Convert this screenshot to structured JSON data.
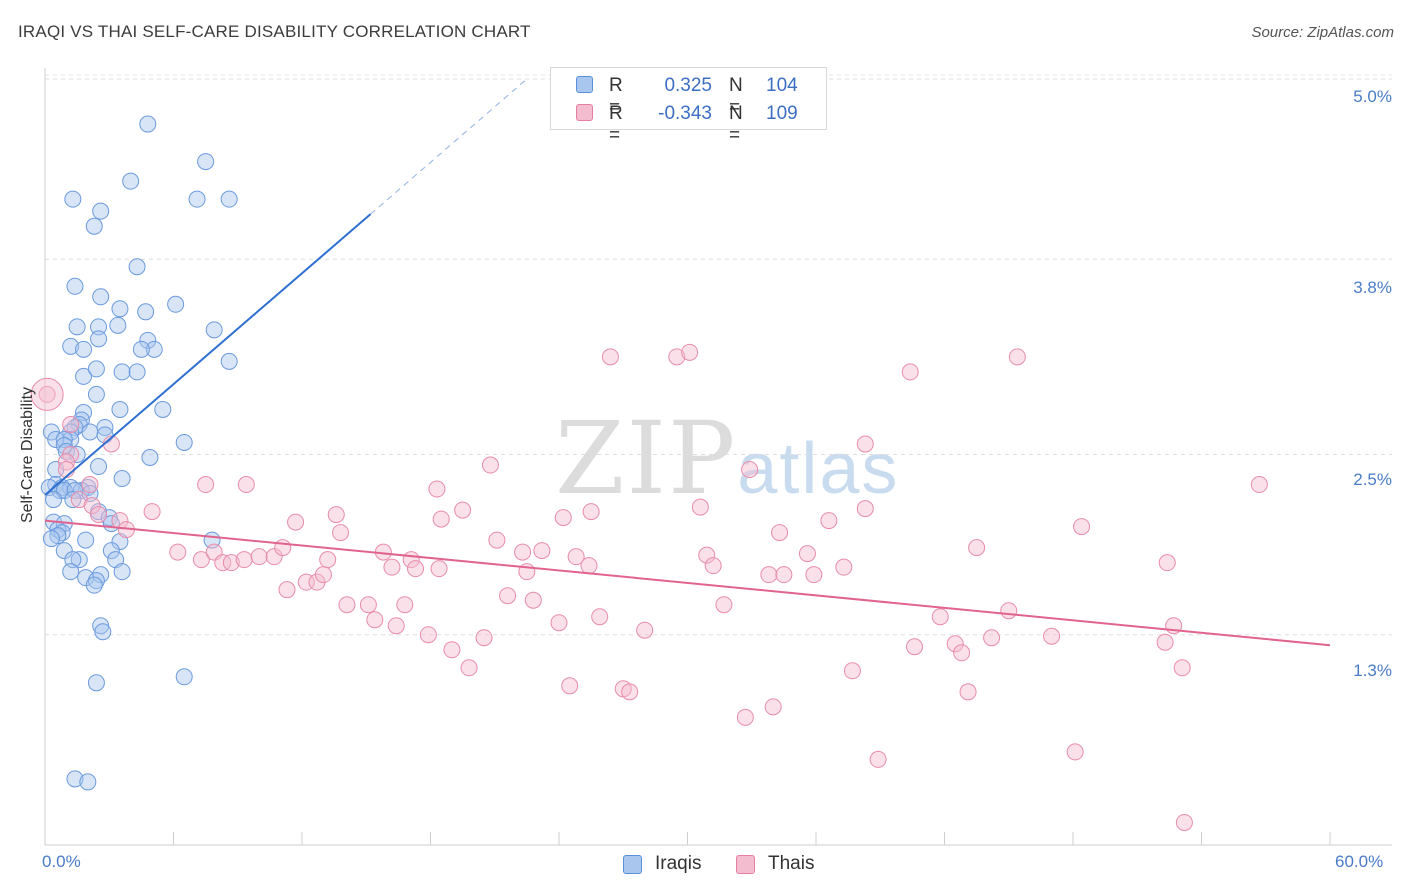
{
  "title": "IRAQI VS THAI SELF-CARE DISABILITY CORRELATION CHART",
  "source": "Source: ZipAtlas.com",
  "watermark": {
    "zip": "ZIP",
    "atlas": "atlas"
  },
  "colors": {
    "iraqis": "#5b8fd9",
    "iraqis_fill": "#a9c6ee",
    "thais": "#e57fa2",
    "thais_fill": "#f4bccf",
    "tick_text": "#4a7cc8"
  },
  "stats": {
    "iraqis": {
      "r_label": "R =",
      "r": "0.325",
      "n_label": "N =",
      "n": "104"
    },
    "thais": {
      "r_label": "R =",
      "r": "-0.343",
      "n_label": "N =",
      "n": "109"
    }
  },
  "legend": {
    "iraqis": "Iraqis",
    "thais": "Thais"
  },
  "chart_data": {
    "type": "scatter",
    "title": "IRAQI VS THAI SELF-CARE DISABILITY CORRELATION CHART",
    "xlabel": "",
    "ylabel": "Self-Care Disability",
    "xlim": [
      0,
      60
    ],
    "ylim": [
      0,
      5.0
    ],
    "x_tick_labels": [
      "0.0%",
      "60.0%"
    ],
    "y_ticks": [
      1.3,
      2.5,
      3.8,
      5.0
    ],
    "y_tick_labels": [
      "1.3%",
      "2.5%",
      "3.8%",
      "5.0%"
    ],
    "grid": true,
    "legend_position": "bottom",
    "series": [
      {
        "name": "Iraqis",
        "color": "#5b8fd9",
        "trendline": {
          "x": [
            0,
            15.2
          ],
          "y": [
            2.23,
            4.1
          ],
          "dashed_to": [
            22.5,
            5.0
          ]
        },
        "points": [
          [
            4.8,
            4.7
          ],
          [
            7.5,
            4.45
          ],
          [
            4,
            4.32
          ],
          [
            1.3,
            4.2
          ],
          [
            7.1,
            4.2
          ],
          [
            8.6,
            4.2
          ],
          [
            2.6,
            4.12
          ],
          [
            2.3,
            4.02
          ],
          [
            4.3,
            3.75
          ],
          [
            1.4,
            3.62
          ],
          [
            2.6,
            3.55
          ],
          [
            3.5,
            3.47
          ],
          [
            6.1,
            3.5
          ],
          [
            4.7,
            3.45
          ],
          [
            1.5,
            3.35
          ],
          [
            2.5,
            3.35
          ],
          [
            3.4,
            3.36
          ],
          [
            7.9,
            3.33
          ],
          [
            2.5,
            3.27
          ],
          [
            4.8,
            3.26
          ],
          [
            1.2,
            3.22
          ],
          [
            5.1,
            3.2
          ],
          [
            4.5,
            3.2
          ],
          [
            1.8,
            3.2
          ],
          [
            8.6,
            3.12
          ],
          [
            3.6,
            3.05
          ],
          [
            4.3,
            3.05
          ],
          [
            1.8,
            3.02
          ],
          [
            2.4,
            3.07
          ],
          [
            2.4,
            2.9
          ],
          [
            1.8,
            2.78
          ],
          [
            5.5,
            2.8
          ],
          [
            3.5,
            2.8
          ],
          [
            1.7,
            2.73
          ],
          [
            1.6,
            2.7
          ],
          [
            2.8,
            2.68
          ],
          [
            1.4,
            2.68
          ],
          [
            0.3,
            2.65
          ],
          [
            1.2,
            2.65
          ],
          [
            2.1,
            2.65
          ],
          [
            2.8,
            2.63
          ],
          [
            1.2,
            2.6
          ],
          [
            0.5,
            2.6
          ],
          [
            0.9,
            2.6
          ],
          [
            6.5,
            2.58
          ],
          [
            0.9,
            2.56
          ],
          [
            1.0,
            2.52
          ],
          [
            1.5,
            2.5
          ],
          [
            4.9,
            2.48
          ],
          [
            0.5,
            2.4
          ],
          [
            2.5,
            2.42
          ],
          [
            3.6,
            2.34
          ],
          [
            0.5,
            2.3
          ],
          [
            0.8,
            2.28
          ],
          [
            1.2,
            2.28
          ],
          [
            2.0,
            2.28
          ],
          [
            0.2,
            2.28
          ],
          [
            1.7,
            2.26
          ],
          [
            0.7,
            2.26
          ],
          [
            0.9,
            2.26
          ],
          [
            1.4,
            2.26
          ],
          [
            2.1,
            2.24
          ],
          [
            0.4,
            2.2
          ],
          [
            1.3,
            2.2
          ],
          [
            2.5,
            2.12
          ],
          [
            3.0,
            2.08
          ],
          [
            3.1,
            2.04
          ],
          [
            0.4,
            2.05
          ],
          [
            0.9,
            2.04
          ],
          [
            0.6,
            2.0
          ],
          [
            0.8,
            1.98
          ],
          [
            0.6,
            1.96
          ],
          [
            0.3,
            1.94
          ],
          [
            1.9,
            1.93
          ],
          [
            7.8,
            1.93
          ],
          [
            3.5,
            1.92
          ],
          [
            0.9,
            1.86
          ],
          [
            3.1,
            1.86
          ],
          [
            1.6,
            1.8
          ],
          [
            3.3,
            1.8
          ],
          [
            1.3,
            1.8
          ],
          [
            3.6,
            1.72
          ],
          [
            2.6,
            1.7
          ],
          [
            1.9,
            1.68
          ],
          [
            1.2,
            1.72
          ],
          [
            2.4,
            1.66
          ],
          [
            2.3,
            1.63
          ],
          [
            2.6,
            1.36
          ],
          [
            2.7,
            1.32
          ],
          [
            6.5,
            1.02
          ],
          [
            2.4,
            0.98
          ],
          [
            1.4,
            0.34
          ],
          [
            2.0,
            0.32
          ]
        ]
      },
      {
        "name": "Thais",
        "color": "#e57fa2",
        "trendline": {
          "x": [
            0,
            60
          ],
          "y": [
            2.06,
            1.23
          ]
        },
        "points": [
          [
            0.1,
            2.9
          ],
          [
            1.2,
            2.7
          ],
          [
            1.2,
            2.5
          ],
          [
            1.0,
            2.45
          ],
          [
            3.1,
            2.57
          ],
          [
            1.0,
            2.4
          ],
          [
            2.1,
            2.3
          ],
          [
            1.6,
            2.2
          ],
          [
            2.2,
            2.16
          ],
          [
            2.5,
            2.1
          ],
          [
            3.5,
            2.06
          ],
          [
            3.8,
            2.0
          ],
          [
            5.0,
            2.12
          ],
          [
            7.5,
            2.3
          ],
          [
            9.4,
            2.3
          ],
          [
            7.3,
            1.8
          ],
          [
            6.2,
            1.85
          ],
          [
            7.9,
            1.85
          ],
          [
            8.3,
            1.78
          ],
          [
            8.7,
            1.78
          ],
          [
            9.3,
            1.8
          ],
          [
            10.0,
            1.82
          ],
          [
            10.7,
            1.82
          ],
          [
            11.1,
            1.88
          ],
          [
            11.3,
            1.6
          ],
          [
            11.7,
            2.05
          ],
          [
            12.2,
            1.65
          ],
          [
            12.7,
            1.65
          ],
          [
            13.0,
            1.7
          ],
          [
            13.2,
            1.8
          ],
          [
            13.8,
            1.98
          ],
          [
            14.1,
            1.5
          ],
          [
            13.6,
            2.1
          ],
          [
            15.1,
            1.5
          ],
          [
            15.4,
            1.4
          ],
          [
            15.8,
            1.85
          ],
          [
            16.2,
            1.75
          ],
          [
            16.4,
            1.36
          ],
          [
            16.8,
            1.5
          ],
          [
            17.1,
            1.8
          ],
          [
            17.3,
            1.74
          ],
          [
            17.9,
            1.3
          ],
          [
            18.3,
            2.27
          ],
          [
            18.5,
            2.07
          ],
          [
            18.4,
            1.74
          ],
          [
            19.0,
            1.2
          ],
          [
            19.5,
            2.13
          ],
          [
            19.8,
            1.08
          ],
          [
            20.5,
            1.28
          ],
          [
            20.8,
            2.43
          ],
          [
            21.1,
            1.93
          ],
          [
            21.6,
            1.56
          ],
          [
            22.3,
            1.85
          ],
          [
            22.5,
            1.72
          ],
          [
            22.8,
            1.53
          ],
          [
            23.2,
            1.86
          ],
          [
            24.0,
            1.38
          ],
          [
            24.2,
            2.08
          ],
          [
            24.5,
            0.96
          ],
          [
            24.8,
            1.82
          ],
          [
            25.4,
            1.76
          ],
          [
            25.5,
            2.12
          ],
          [
            25.9,
            1.42
          ],
          [
            26.4,
            3.15
          ],
          [
            27.0,
            0.94
          ],
          [
            27.3,
            0.92
          ],
          [
            28.0,
            1.33
          ],
          [
            29.5,
            3.15
          ],
          [
            30.1,
            3.18
          ],
          [
            30.6,
            2.15
          ],
          [
            30.9,
            1.83
          ],
          [
            31.2,
            1.76
          ],
          [
            31.7,
            1.5
          ],
          [
            32.7,
            0.75
          ],
          [
            32.9,
            2.4
          ],
          [
            33.8,
            1.7
          ],
          [
            34.0,
            0.82
          ],
          [
            34.3,
            1.98
          ],
          [
            34.5,
            1.7
          ],
          [
            35.6,
            1.84
          ],
          [
            35.9,
            1.7
          ],
          [
            36.6,
            2.06
          ],
          [
            37.3,
            1.75
          ],
          [
            37.7,
            1.06
          ],
          [
            38.3,
            2.14
          ],
          [
            38.3,
            2.57
          ],
          [
            38.9,
            0.47
          ],
          [
            40.4,
            3.05
          ],
          [
            40.6,
            1.22
          ],
          [
            41.8,
            1.42
          ],
          [
            42.5,
            1.24
          ],
          [
            42.8,
            1.18
          ],
          [
            43.1,
            0.92
          ],
          [
            43.5,
            1.88
          ],
          [
            44.2,
            1.28
          ],
          [
            45.0,
            1.46
          ],
          [
            45.4,
            3.15
          ],
          [
            47.0,
            1.29
          ],
          [
            56.7,
            2.3
          ],
          [
            52.4,
            1.78
          ],
          [
            48.4,
            2.02
          ],
          [
            48.1,
            0.52
          ],
          [
            52.3,
            1.25
          ],
          [
            53.1,
            1.08
          ],
          [
            52.7,
            1.36
          ],
          [
            53.2,
            0.05
          ]
        ]
      }
    ]
  }
}
